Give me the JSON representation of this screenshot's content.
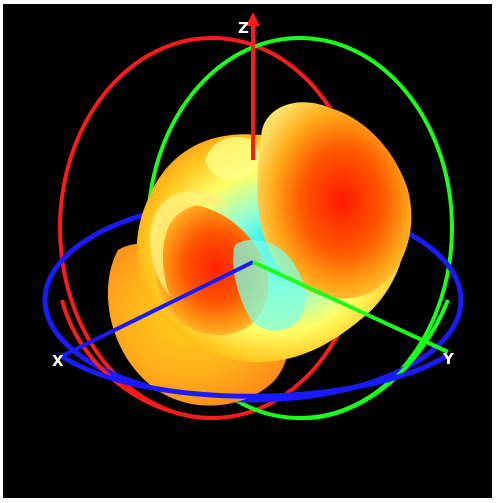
{
  "scene": {
    "background": "#000000",
    "frame_color": "#ffffff"
  },
  "axes": {
    "x": {
      "label": "X",
      "color": "#0000ff"
    },
    "y": {
      "label": "Y",
      "color": "#00ee00"
    },
    "z": {
      "label": "Z",
      "color": "#ee0000"
    }
  },
  "rings": {
    "xy_plane_color": "#1a1aff",
    "xz_plane_color": "#ff1a1a",
    "yz_plane_color": "#1aff1a"
  },
  "pattern": {
    "colormap": [
      "#00e5ff",
      "#7fffd4",
      "#ffff66",
      "#ffd21a",
      "#ff8c1a",
      "#ff2a00"
    ]
  }
}
